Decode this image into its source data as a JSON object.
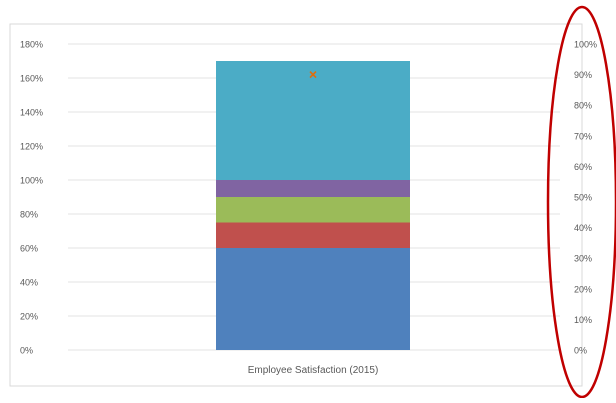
{
  "chart_data": {
    "type": "bar",
    "stacked": true,
    "categories": [
      "Employee Satisfaction (2015)"
    ],
    "series": [
      {
        "color": "#4f81bd",
        "values": [
          60
        ]
      },
      {
        "color": "#c0504d",
        "values": [
          15
        ]
      },
      {
        "color": "#9bbb59",
        "values": [
          15
        ]
      },
      {
        "color": "#8064a2",
        "values": [
          10
        ]
      },
      {
        "color": "#4bacc6",
        "values": [
          70
        ]
      }
    ],
    "marker": {
      "type": "scatter",
      "symbol": "x",
      "color": "#e46c0a",
      "y": 162
    },
    "y_left": {
      "lim": [
        0,
        180
      ],
      "ticks": [
        0,
        20,
        40,
        60,
        80,
        100,
        120,
        140,
        160,
        180
      ],
      "tick_labels": [
        "0%",
        "20%",
        "40%",
        "60%",
        "80%",
        "100%",
        "120%",
        "140%",
        "160%",
        "180%"
      ]
    },
    "y_right": {
      "lim": [
        0,
        100
      ],
      "ticks": [
        0,
        10,
        20,
        30,
        40,
        50,
        60,
        70,
        80,
        90,
        100
      ],
      "tick_labels": [
        "0%",
        "10%",
        "20%",
        "30%",
        "40%",
        "50%",
        "60%",
        "70%",
        "80%",
        "90%",
        "100%"
      ]
    },
    "grid": true,
    "legend": "none",
    "annotation": {
      "shape": "ellipse",
      "target": "right-axis",
      "color": "#c00000"
    }
  }
}
